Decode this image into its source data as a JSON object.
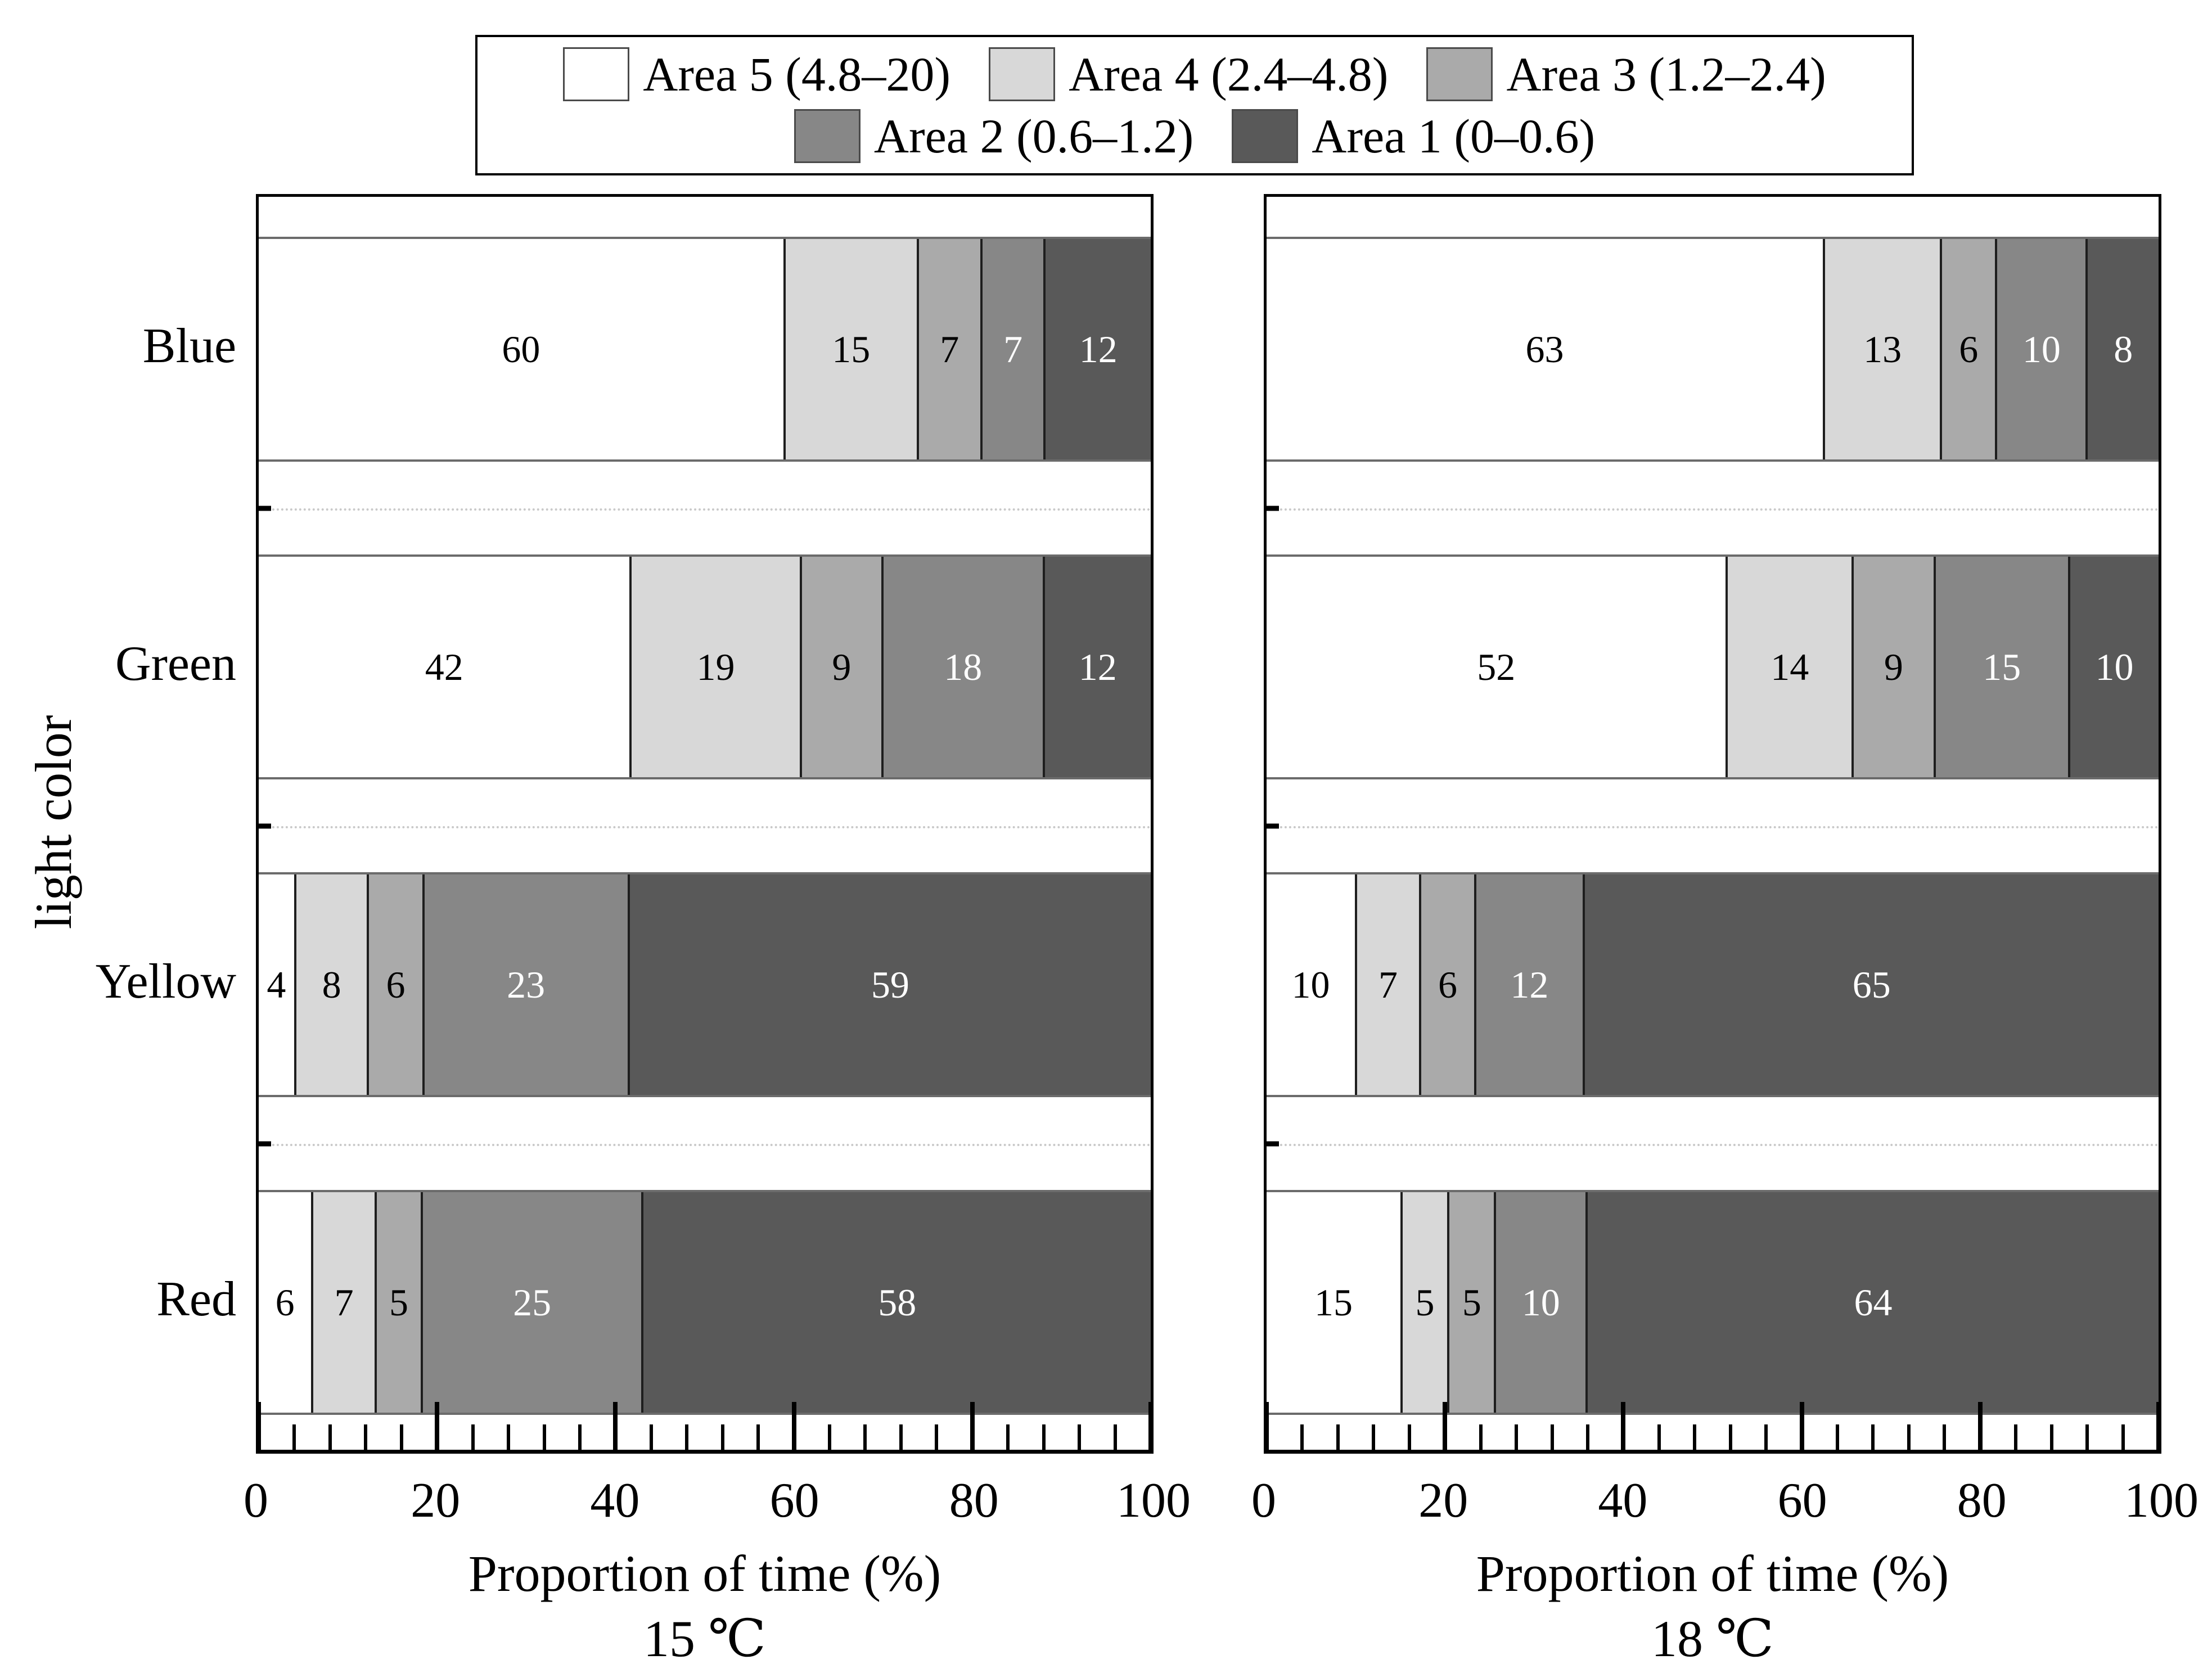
{
  "figure": {
    "background": "#ffffff"
  },
  "chart_data": {
    "type": "bar",
    "orientation": "horizontal",
    "stacked": true,
    "title": "",
    "categories": [
      "Blue",
      "Green",
      "Yellow",
      "Red"
    ],
    "ylabel": "light color",
    "xlabel": "Proportion of time (%)",
    "xlim": [
      0,
      100
    ],
    "xticks": [
      "0",
      "20",
      "40",
      "60",
      "80",
      "100"
    ],
    "minor_tick_step": 4,
    "grid": "dotted light-gray separator line between category rows",
    "legend": {
      "position": "top-center, boxed, two rows",
      "entries": [
        {
          "label": "Area 5 (4.8–20)",
          "color": "#ffffff"
        },
        {
          "label": "Area 4 (2.4–4.8)",
          "color": "#d8d8d8"
        },
        {
          "label": "Area 3 (1.2–2.4)",
          "color": "#aaaaaa"
        },
        {
          "label": "Area 2 (0.6–1.2)",
          "color": "#878787"
        },
        {
          "label": "Area 1 (0–0.6)",
          "color": "#595959"
        }
      ],
      "rows": [
        [
          0,
          1,
          2
        ],
        [
          3,
          4
        ]
      ]
    },
    "label_text_colors": [
      "#000000",
      "#000000",
      "#000000",
      "#ffffff",
      "#ffffff"
    ],
    "panels": [
      {
        "title": "15 ℃",
        "series": [
          {
            "name": "Area 5 (4.8–20)",
            "values": [
              60,
              42,
              4,
              6
            ]
          },
          {
            "name": "Area 4 (2.4–4.8)",
            "values": [
              15,
              19,
              8,
              7
            ]
          },
          {
            "name": "Area 3 (1.2–2.4)",
            "values": [
              7,
              9,
              6,
              5
            ]
          },
          {
            "name": "Area 2 (0.6–1.2)",
            "values": [
              7,
              18,
              23,
              25
            ]
          },
          {
            "name": "Area 1 (0–0.6)",
            "values": [
              12,
              12,
              59,
              58
            ]
          }
        ]
      },
      {
        "title": "18 ℃",
        "series": [
          {
            "name": "Area 5 (4.8–20)",
            "values": [
              63,
              52,
              10,
              15
            ]
          },
          {
            "name": "Area 4 (2.4–4.8)",
            "values": [
              13,
              14,
              7,
              5
            ]
          },
          {
            "name": "Area 3 (1.2–2.4)",
            "values": [
              6,
              9,
              6,
              5
            ]
          },
          {
            "name": "Area 2 (0.6–1.2)",
            "values": [
              10,
              15,
              12,
              10
            ]
          },
          {
            "name": "Area 1 (0–0.6)",
            "values": [
              8,
              10,
              65,
              64
            ]
          }
        ]
      }
    ]
  }
}
